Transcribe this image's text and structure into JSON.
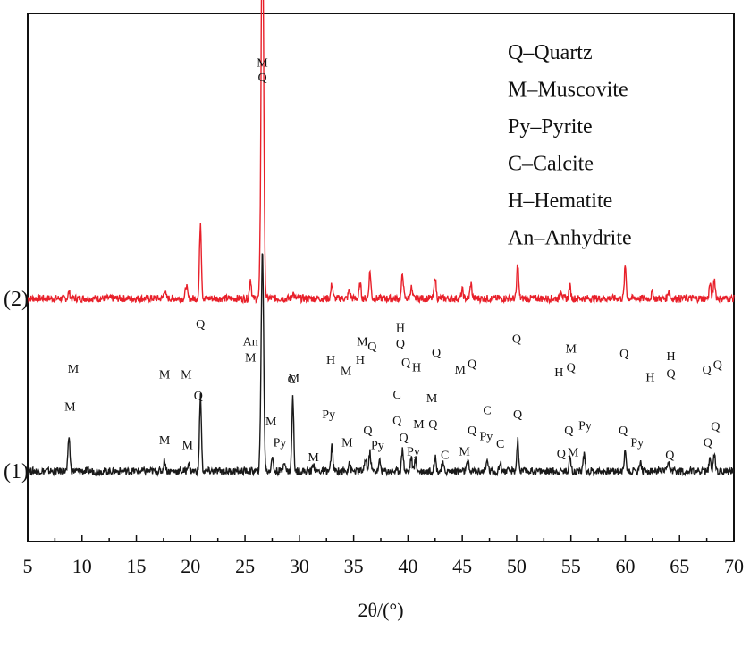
{
  "chart_data": {
    "type": "line",
    "title": "",
    "xlabel": "2θ/(°)",
    "ylabel": "",
    "xlim": [
      5,
      70
    ],
    "xticks": [
      5,
      10,
      15,
      20,
      25,
      30,
      35,
      40,
      45,
      50,
      55,
      60,
      65,
      70
    ],
    "tick_labels": [
      "5",
      "10",
      "15",
      "20",
      "25",
      "30",
      "35",
      "40",
      "45",
      "50",
      "55",
      "60",
      "65",
      "70"
    ],
    "grid": false,
    "legend_position": "top-right",
    "legend": [
      "Q–Quartz",
      "M–Muscovite",
      "Py–Pyrite",
      "C–Calcite",
      "H–Hematite",
      "An–Anhydrite"
    ],
    "series": [
      {
        "label": "(2)",
        "color": "#e8202a",
        "baseline": 150,
        "noise": 3,
        "peaks": [
          [
            8.8,
            5
          ],
          [
            17.6,
            7
          ],
          [
            19.6,
            11
          ],
          [
            20.9,
            62
          ],
          [
            25.5,
            16
          ],
          [
            26.6,
            330
          ],
          [
            29.4,
            5
          ],
          [
            33.0,
            12
          ],
          [
            34.6,
            7
          ],
          [
            35.6,
            12
          ],
          [
            36.5,
            22
          ],
          [
            39.5,
            20
          ],
          [
            40.3,
            9
          ],
          [
            42.5,
            18
          ],
          [
            45.0,
            7
          ],
          [
            45.8,
            12
          ],
          [
            50.1,
            28
          ],
          [
            54.1,
            7
          ],
          [
            54.9,
            10
          ],
          [
            60.0,
            26
          ],
          [
            62.5,
            5
          ],
          [
            64.0,
            7
          ],
          [
            67.8,
            12
          ],
          [
            68.2,
            16
          ]
        ]
      },
      {
        "label": "(1)",
        "color": "#1a1a1a",
        "baseline": 10,
        "noise": 3,
        "peaks": [
          [
            8.8,
            28
          ],
          [
            17.6,
            9
          ],
          [
            19.8,
            7
          ],
          [
            20.9,
            62
          ],
          [
            26.6,
            180
          ],
          [
            27.5,
            12
          ],
          [
            28.6,
            9
          ],
          [
            29.4,
            60
          ],
          [
            31.3,
            6
          ],
          [
            33.0,
            20
          ],
          [
            34.6,
            8
          ],
          [
            36.1,
            10
          ],
          [
            36.5,
            15
          ],
          [
            37.4,
            8
          ],
          [
            39.5,
            18
          ],
          [
            40.3,
            11
          ],
          [
            40.7,
            10
          ],
          [
            42.5,
            12
          ],
          [
            43.2,
            6
          ],
          [
            45.5,
            8
          ],
          [
            47.3,
            9
          ],
          [
            48.5,
            7
          ],
          [
            50.1,
            25
          ],
          [
            54.9,
            12
          ],
          [
            56.2,
            14
          ],
          [
            60.0,
            17
          ],
          [
            61.4,
            8
          ],
          [
            64.0,
            6
          ],
          [
            67.8,
            10
          ],
          [
            68.2,
            15
          ]
        ]
      }
    ],
    "annotations": [
      {
        "text": "M",
        "x": 26.6,
        "level": 338
      },
      {
        "text": "Q",
        "x": 26.6,
        "level": 326
      },
      {
        "text": "Q",
        "x": 20.9,
        "level": 126
      },
      {
        "text": "An",
        "x": 25.5,
        "level": 112
      },
      {
        "text": "M",
        "x": 25.5,
        "level": 99
      },
      {
        "text": "M",
        "x": 9.2,
        "level": 90
      },
      {
        "text": "M",
        "x": 17.6,
        "level": 85
      },
      {
        "text": "M",
        "x": 19.6,
        "level": 85
      },
      {
        "text": "M",
        "x": 29.5,
        "level": 82
      },
      {
        "text": "H",
        "x": 32.9,
        "level": 97
      },
      {
        "text": "M",
        "x": 34.3,
        "level": 88
      },
      {
        "text": "H",
        "x": 35.6,
        "level": 97
      },
      {
        "text": "M",
        "x": 35.8,
        "level": 112
      },
      {
        "text": "Q",
        "x": 36.7,
        "level": 108
      },
      {
        "text": "H",
        "x": 39.3,
        "level": 123
      },
      {
        "text": "Q",
        "x": 39.3,
        "level": 110
      },
      {
        "text": "Q",
        "x": 39.8,
        "level": 95
      },
      {
        "text": "H",
        "x": 40.8,
        "level": 91
      },
      {
        "text": "Q",
        "x": 42.6,
        "level": 103
      },
      {
        "text": "M",
        "x": 44.8,
        "level": 89
      },
      {
        "text": "Q",
        "x": 45.9,
        "level": 94
      },
      {
        "text": "Q",
        "x": 50.0,
        "level": 114
      },
      {
        "text": "H",
        "x": 53.9,
        "level": 87
      },
      {
        "text": "M",
        "x": 55.0,
        "level": 106
      },
      {
        "text": "Q",
        "x": 55.0,
        "level": 91
      },
      {
        "text": "Q",
        "x": 59.9,
        "level": 102
      },
      {
        "text": "H",
        "x": 62.3,
        "level": 83
      },
      {
        "text": "H",
        "x": 64.2,
        "level": 100
      },
      {
        "text": "Q",
        "x": 64.2,
        "level": 86
      },
      {
        "text": "Q",
        "x": 67.5,
        "level": 89
      },
      {
        "text": "Q",
        "x": 68.5,
        "level": 93
      },
      {
        "text": "M",
        "x": 8.9,
        "level": 59
      },
      {
        "text": "M",
        "x": 17.6,
        "level": 32
      },
      {
        "text": "M",
        "x": 19.7,
        "level": 28
      },
      {
        "text": "Q",
        "x": 20.7,
        "level": 68
      },
      {
        "text": "C",
        "x": 29.3,
        "level": 81
      },
      {
        "text": "M",
        "x": 27.4,
        "level": 47
      },
      {
        "text": "Py",
        "x": 28.2,
        "level": 30
      },
      {
        "text": "M",
        "x": 31.3,
        "level": 18
      },
      {
        "text": "Py",
        "x": 32.7,
        "level": 53
      },
      {
        "text": "M",
        "x": 34.4,
        "level": 30
      },
      {
        "text": "Q",
        "x": 36.3,
        "level": 40
      },
      {
        "text": "Py",
        "x": 37.2,
        "level": 28
      },
      {
        "text": "C",
        "x": 39.0,
        "level": 69
      },
      {
        "text": "Q",
        "x": 39.0,
        "level": 48
      },
      {
        "text": "Q",
        "x": 39.6,
        "level": 34
      },
      {
        "text": "Py",
        "x": 40.5,
        "level": 23
      },
      {
        "text": "M",
        "x": 41.0,
        "level": 45
      },
      {
        "text": "M",
        "x": 42.2,
        "level": 66
      },
      {
        "text": "Q",
        "x": 42.3,
        "level": 45
      },
      {
        "text": "C",
        "x": 43.4,
        "level": 20
      },
      {
        "text": "M",
        "x": 45.2,
        "level": 23
      },
      {
        "text": "Q",
        "x": 45.9,
        "level": 40
      },
      {
        "text": "C",
        "x": 47.3,
        "level": 56
      },
      {
        "text": "Py",
        "x": 47.2,
        "level": 35
      },
      {
        "text": "C",
        "x": 48.5,
        "level": 29
      },
      {
        "text": "Q",
        "x": 50.1,
        "level": 53
      },
      {
        "text": "Q",
        "x": 54.1,
        "level": 21
      },
      {
        "text": "Q",
        "x": 54.8,
        "level": 40
      },
      {
        "text": "M",
        "x": 55.2,
        "level": 22
      },
      {
        "text": "Py",
        "x": 56.3,
        "level": 44
      },
      {
        "text": "Q",
        "x": 59.8,
        "level": 40
      },
      {
        "text": "Py",
        "x": 61.1,
        "level": 30
      },
      {
        "text": "Q",
        "x": 64.1,
        "level": 20
      },
      {
        "text": "Q",
        "x": 67.6,
        "level": 30
      },
      {
        "text": "Q",
        "x": 68.3,
        "level": 43
      }
    ]
  }
}
